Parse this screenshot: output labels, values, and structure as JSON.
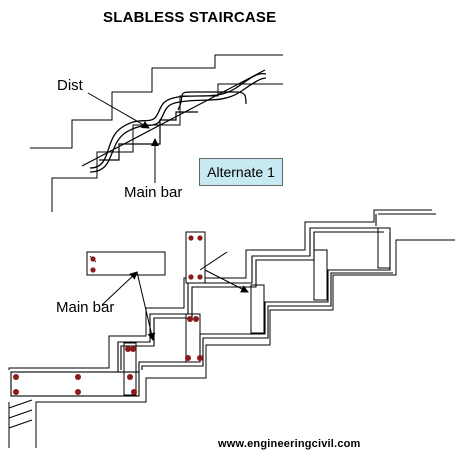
{
  "diagram": {
    "title": "SLABLESS STAIRCASE",
    "labels": {
      "dist": "Dist",
      "main_bar_top": "Main bar",
      "main_bar_bottom": "Main bar",
      "alternate": "Alternate 1"
    },
    "footer": "www.engineeringcivil.com",
    "colors": {
      "line": "#000000",
      "bar_dot": "#8b1a1a",
      "label_box": "#c7e9f2"
    }
  }
}
